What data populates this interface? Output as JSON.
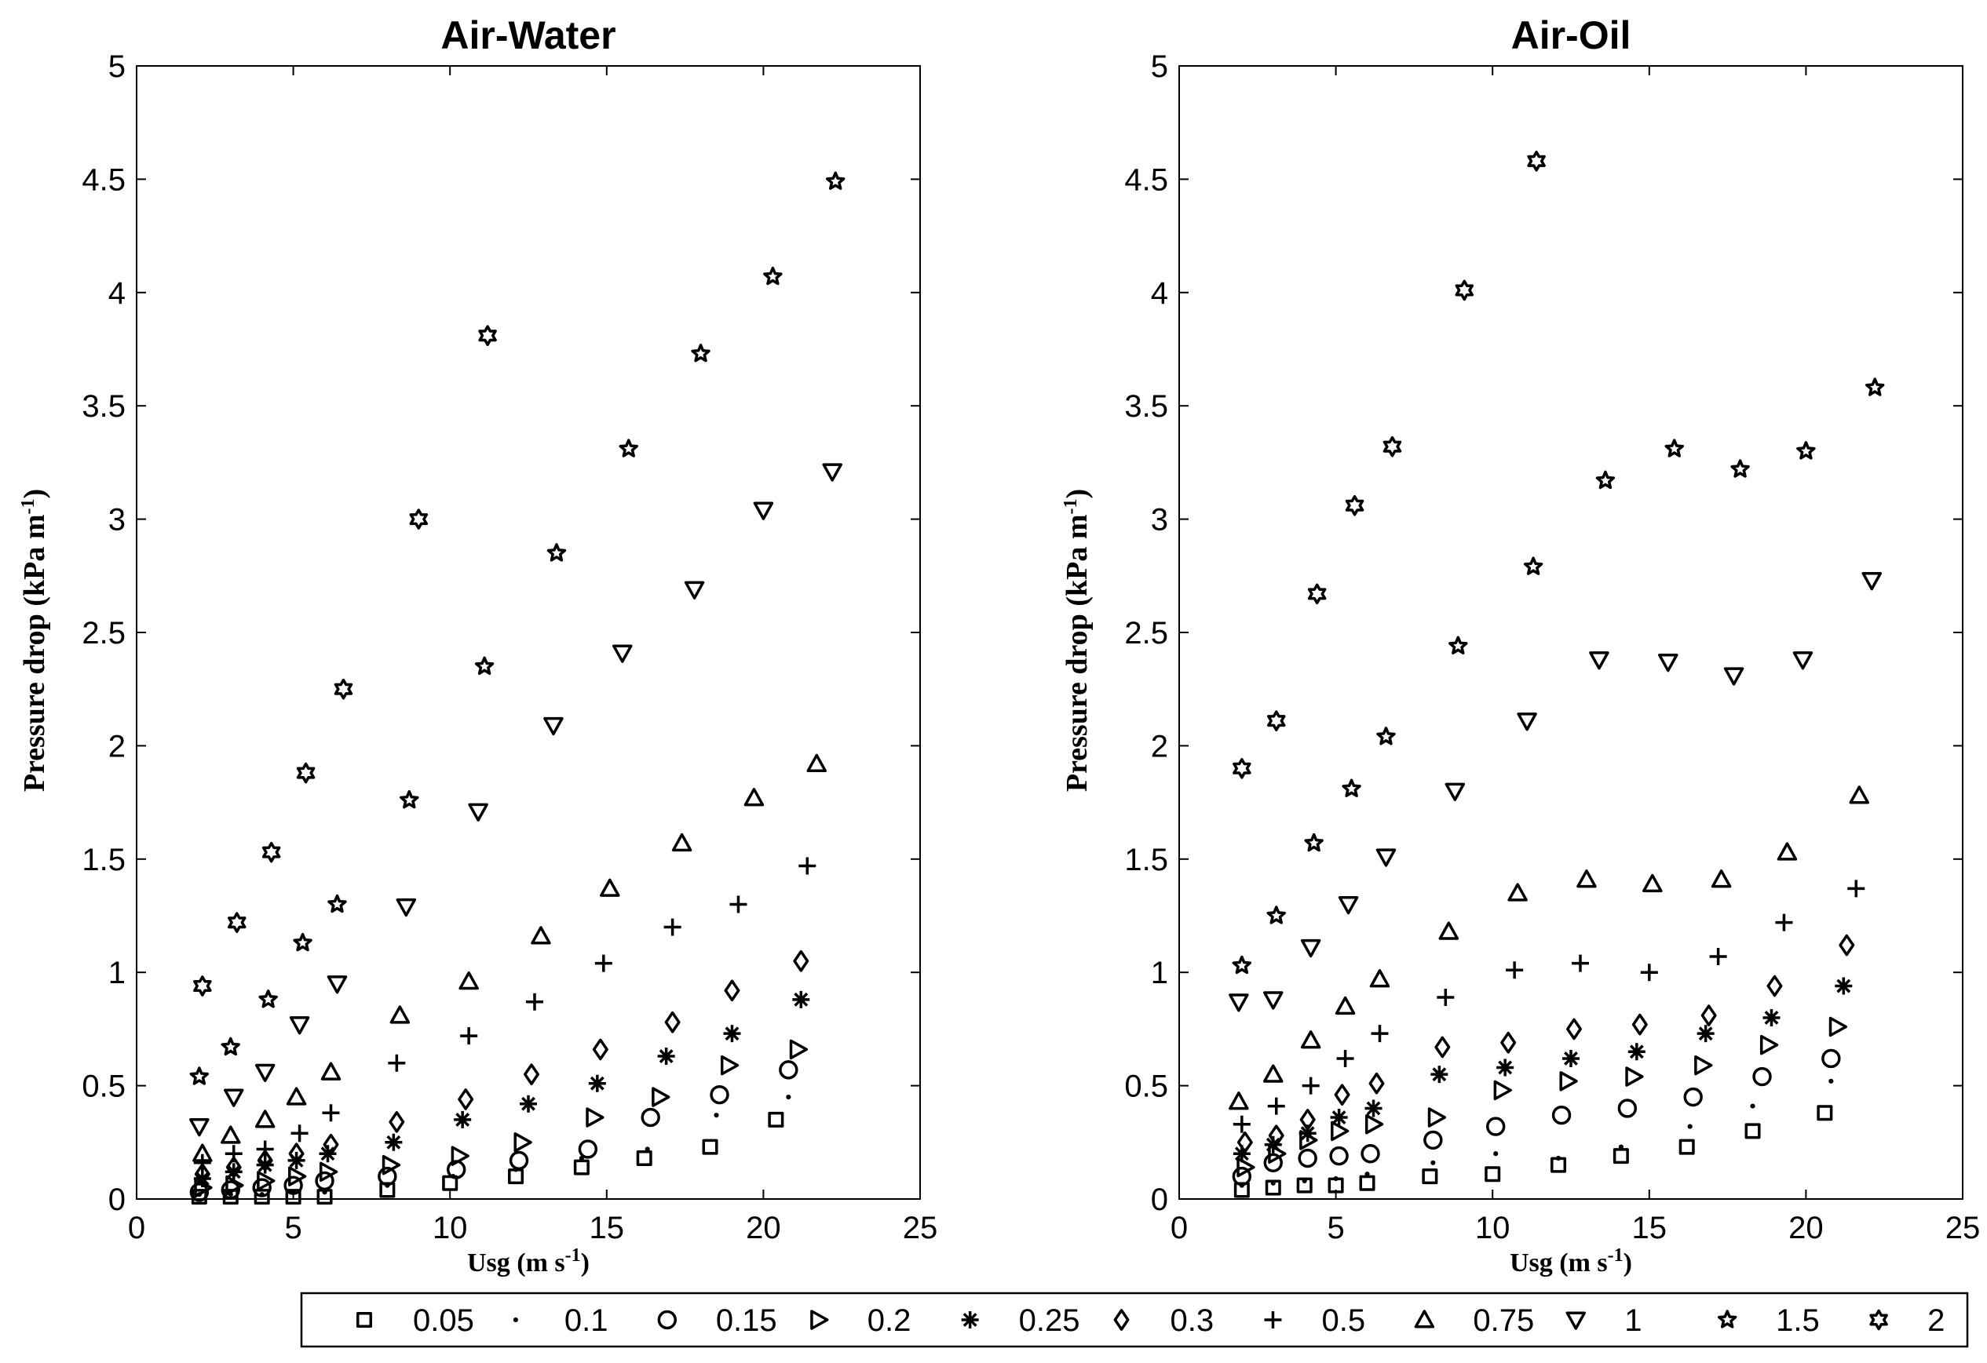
{
  "chart_data": [
    {
      "type": "scatter",
      "title": "Air-Water",
      "xlabel": "Usg (m s-1)",
      "xlabel_parts": {
        "base": "Usg (m s",
        "sup": "-1",
        "tail": ")"
      },
      "ylabel": "Pressure drop (kPa m-1)",
      "ylabel_parts": {
        "base": "Pressure drop (kPa m",
        "sup": "-1",
        "tail": ")"
      },
      "xlim": [
        0,
        25
      ],
      "ylim": [
        0,
        5
      ],
      "xticks": [
        "0",
        "5",
        "10",
        "15",
        "20",
        "25"
      ],
      "yticks": [
        "0",
        "0.5",
        "1",
        "1.5",
        "2",
        "2.5",
        "3",
        "3.5",
        "4",
        "4.5",
        "5"
      ],
      "grid": false,
      "series": [
        {
          "name": "0.05",
          "marker": "square",
          "x": [
            2.0,
            3.0,
            4.0,
            5.0,
            6.0,
            8.0,
            10.0,
            12.1,
            14.2,
            16.2,
            18.3,
            20.4
          ],
          "y": [
            0.01,
            0.01,
            0.01,
            0.01,
            0.01,
            0.04,
            0.07,
            0.1,
            0.14,
            0.18,
            0.23,
            0.35
          ]
        },
        {
          "name": "0.1",
          "marker": "dot",
          "x": [
            2.0,
            3.0,
            4.0,
            5.0,
            6.0,
            8.0,
            10.1,
            12.1,
            14.2,
            16.3,
            18.5,
            20.8
          ],
          "y": [
            0.02,
            0.02,
            0.02,
            0.03,
            0.03,
            0.06,
            0.1,
            0.13,
            0.18,
            0.22,
            0.37,
            0.45
          ]
        },
        {
          "name": "0.15",
          "marker": "circle",
          "x": [
            2.0,
            3.0,
            4.0,
            5.0,
            6.0,
            8.0,
            10.2,
            12.2,
            14.4,
            16.4,
            18.6,
            20.8
          ],
          "y": [
            0.03,
            0.04,
            0.05,
            0.06,
            0.08,
            0.1,
            0.13,
            0.17,
            0.22,
            0.36,
            0.46,
            0.57
          ]
        },
        {
          "name": "0.2",
          "marker": "triangle-right",
          "x": [
            2.1,
            3.1,
            4.1,
            5.1,
            6.1,
            8.1,
            10.3,
            12.3,
            14.6,
            16.7,
            18.9,
            21.1
          ],
          "y": [
            0.05,
            0.06,
            0.08,
            0.1,
            0.12,
            0.15,
            0.19,
            0.25,
            0.36,
            0.45,
            0.59,
            0.66
          ]
        },
        {
          "name": "0.25",
          "marker": "asterisk",
          "x": [
            2.1,
            3.1,
            4.1,
            5.1,
            6.1,
            8.2,
            10.4,
            12.5,
            14.7,
            16.9,
            19.0,
            21.2
          ],
          "y": [
            0.09,
            0.12,
            0.15,
            0.17,
            0.2,
            0.25,
            0.35,
            0.42,
            0.51,
            0.63,
            0.73,
            0.88
          ]
        },
        {
          "name": "0.3",
          "marker": "diamond",
          "x": [
            2.1,
            3.1,
            4.1,
            5.1,
            6.2,
            8.3,
            10.5,
            12.6,
            14.8,
            17.1,
            19.0,
            21.2
          ],
          "y": [
            0.11,
            0.14,
            0.17,
            0.2,
            0.24,
            0.34,
            0.44,
            0.55,
            0.66,
            0.78,
            0.92,
            1.05
          ]
        },
        {
          "name": "0.5",
          "marker": "plus",
          "x": [
            2.1,
            3.1,
            4.1,
            5.2,
            6.2,
            8.3,
            10.6,
            12.7,
            14.9,
            17.1,
            19.2,
            21.4
          ],
          "y": [
            0.16,
            0.2,
            0.22,
            0.29,
            0.38,
            0.6,
            0.72,
            0.87,
            1.04,
            1.2,
            1.3,
            1.47
          ]
        },
        {
          "name": "0.75",
          "marker": "triangle-up",
          "x": [
            2.1,
            3.0,
            4.1,
            5.1,
            6.2,
            8.4,
            10.6,
            12.9,
            15.1,
            17.4,
            19.7,
            21.7
          ],
          "y": [
            0.2,
            0.28,
            0.35,
            0.45,
            0.56,
            0.81,
            0.96,
            1.16,
            1.37,
            1.57,
            1.77,
            1.92
          ]
        },
        {
          "name": "1",
          "marker": "triangle-down",
          "x": [
            2.0,
            3.1,
            4.1,
            5.2,
            6.4,
            8.6,
            10.9,
            13.3,
            15.5,
            17.8,
            20.0,
            22.2
          ],
          "y": [
            0.32,
            0.45,
            0.56,
            0.77,
            0.95,
            1.29,
            1.71,
            2.09,
            2.41,
            2.69,
            3.04,
            3.21
          ]
        },
        {
          "name": "1.5",
          "marker": "star5",
          "x": [
            2.0,
            3.0,
            4.2,
            5.3,
            6.4,
            8.7,
            11.1,
            13.4,
            15.7,
            18.0,
            20.3,
            22.3
          ],
          "y": [
            0.54,
            0.67,
            0.88,
            1.13,
            1.3,
            1.76,
            2.35,
            2.85,
            3.31,
            3.73,
            4.07,
            4.49
          ]
        },
        {
          "name": "2",
          "marker": "star6",
          "x": [
            2.1,
            3.2,
            4.3,
            5.4,
            6.6,
            9.0,
            11.2
          ],
          "y": [
            0.94,
            1.22,
            1.53,
            1.88,
            2.25,
            3.0,
            3.81
          ]
        }
      ]
    },
    {
      "type": "scatter",
      "title": "Air-Oil",
      "xlabel": "Usg (m s-1)",
      "xlabel_parts": {
        "base": "Usg (m s",
        "sup": "-1",
        "tail": ")"
      },
      "ylabel": "Pressure drop (kPa m-1)",
      "ylabel_parts": {
        "base": "Pressure drop (kPa m",
        "sup": "-1",
        "tail": ")"
      },
      "xlim": [
        0,
        25
      ],
      "ylim": [
        0,
        5
      ],
      "xticks": [
        "0",
        "5",
        "10",
        "15",
        "20",
        "25"
      ],
      "yticks": [
        "0",
        "0.5",
        "1",
        "1.5",
        "2",
        "2.5",
        "3",
        "3.5",
        "4",
        "4.5",
        "5"
      ],
      "grid": false,
      "series": [
        {
          "name": "0.05",
          "marker": "square",
          "x": [
            2.0,
            3.0,
            4.0,
            5.0,
            6.0,
            8.0,
            10.0,
            12.1,
            14.1,
            16.2,
            18.3,
            20.6
          ],
          "y": [
            0.04,
            0.05,
            0.06,
            0.06,
            0.07,
            0.1,
            0.11,
            0.15,
            0.19,
            0.23,
            0.3,
            0.38
          ]
        },
        {
          "name": "0.1",
          "marker": "dot",
          "x": [
            2.0,
            3.0,
            4.0,
            5.0,
            6.0,
            8.1,
            10.1,
            12.1,
            14.1,
            16.3,
            18.3,
            20.8
          ],
          "y": [
            0.06,
            0.07,
            0.08,
            0.09,
            0.11,
            0.16,
            0.2,
            0.18,
            0.23,
            0.32,
            0.41,
            0.52
          ]
        },
        {
          "name": "0.15",
          "marker": "circle",
          "x": [
            2.0,
            3.0,
            4.1,
            5.1,
            6.1,
            8.1,
            10.1,
            12.2,
            14.3,
            16.4,
            18.6,
            20.8
          ],
          "y": [
            0.1,
            0.16,
            0.18,
            0.19,
            0.2,
            0.26,
            0.32,
            0.37,
            0.4,
            0.45,
            0.54,
            0.62
          ]
        },
        {
          "name": "0.2",
          "marker": "triangle-right",
          "x": [
            2.1,
            3.1,
            4.1,
            5.1,
            6.2,
            8.2,
            10.3,
            12.4,
            14.5,
            16.7,
            18.8,
            21.0
          ],
          "y": [
            0.14,
            0.2,
            0.26,
            0.3,
            0.33,
            0.36,
            0.48,
            0.52,
            0.54,
            0.59,
            0.68,
            0.76
          ]
        },
        {
          "name": "0.25",
          "marker": "asterisk",
          "x": [
            2.0,
            3.0,
            4.1,
            5.1,
            6.2,
            8.3,
            10.4,
            12.5,
            14.6,
            16.8,
            18.9,
            21.2
          ],
          "y": [
            0.2,
            0.24,
            0.29,
            0.36,
            0.4,
            0.55,
            0.58,
            0.62,
            0.65,
            0.73,
            0.8,
            0.94
          ]
        },
        {
          "name": "0.3",
          "marker": "diamond",
          "x": [
            2.1,
            3.1,
            4.1,
            5.2,
            6.3,
            8.4,
            10.5,
            12.6,
            14.7,
            16.9,
            19.0,
            21.3
          ],
          "y": [
            0.25,
            0.28,
            0.35,
            0.46,
            0.51,
            0.67,
            0.69,
            0.75,
            0.77,
            0.81,
            0.94,
            1.12
          ]
        },
        {
          "name": "0.5",
          "marker": "plus",
          "x": [
            2.0,
            3.1,
            4.2,
            5.3,
            6.4,
            8.5,
            10.7,
            12.8,
            15.0,
            17.2,
            19.3,
            21.6
          ],
          "y": [
            0.33,
            0.41,
            0.5,
            0.62,
            0.73,
            0.89,
            1.01,
            1.04,
            1.0,
            1.07,
            1.22,
            1.37
          ]
        },
        {
          "name": "0.75",
          "marker": "triangle-up",
          "x": [
            1.9,
            3.0,
            4.2,
            5.3,
            6.4,
            8.6,
            10.8,
            13.0,
            15.1,
            17.3,
            19.4,
            21.7
          ],
          "y": [
            0.43,
            0.55,
            0.7,
            0.85,
            0.97,
            1.18,
            1.35,
            1.41,
            1.39,
            1.41,
            1.53,
            1.78
          ]
        },
        {
          "name": "1",
          "marker": "triangle-down",
          "x": [
            1.9,
            3.0,
            4.2,
            5.4,
            6.6,
            8.8,
            11.1,
            13.4,
            15.6,
            17.7,
            19.9,
            22.1
          ],
          "y": [
            0.87,
            0.88,
            1.11,
            1.3,
            1.51,
            1.8,
            2.11,
            2.38,
            2.37,
            2.31,
            2.38,
            2.73
          ]
        },
        {
          "name": "1.5",
          "marker": "star5",
          "x": [
            2.0,
            3.1,
            4.3,
            5.5,
            6.6,
            8.9,
            11.3,
            13.6,
            15.8,
            17.9,
            20.0,
            22.2
          ],
          "y": [
            1.03,
            1.25,
            1.57,
            1.81,
            2.04,
            2.44,
            2.79,
            3.17,
            3.31,
            3.22,
            3.3,
            3.58
          ]
        },
        {
          "name": "2",
          "marker": "star6",
          "x": [
            2.0,
            3.1,
            4.4,
            5.6,
            6.8,
            9.1,
            11.4
          ],
          "y": [
            1.9,
            2.11,
            2.67,
            3.06,
            3.32,
            4.01,
            4.58
          ]
        }
      ]
    }
  ],
  "legend": {
    "placement": "bottom",
    "entries": [
      {
        "label": "0.05",
        "marker": "square"
      },
      {
        "label": "0.1",
        "marker": "dot"
      },
      {
        "label": "0.15",
        "marker": "circle"
      },
      {
        "label": "0.2",
        "marker": "triangle-right"
      },
      {
        "label": "0.25",
        "marker": "asterisk"
      },
      {
        "label": "0.3",
        "marker": "diamond"
      },
      {
        "label": "0.5",
        "marker": "plus"
      },
      {
        "label": "0.75",
        "marker": "triangle-up"
      },
      {
        "label": "1",
        "marker": "triangle-down"
      },
      {
        "label": "1.5",
        "marker": "star5"
      },
      {
        "label": "2",
        "marker": "star6"
      }
    ]
  }
}
